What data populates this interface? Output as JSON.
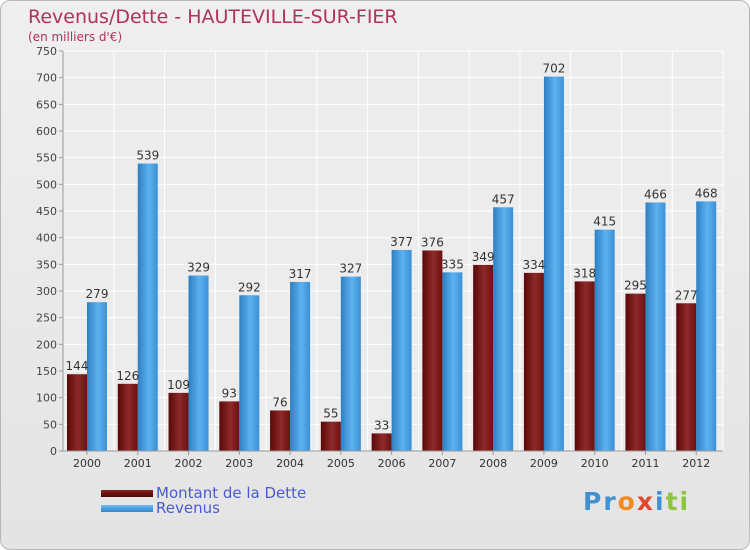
{
  "chart_data": {
    "type": "bar",
    "title": "Revenus/Dette - HAUTEVILLE-SUR-FIER",
    "subtitle": "(en milliers d'€)",
    "xlabel": "",
    "ylabel": "",
    "ylim": [
      0,
      750
    ],
    "yticks": [
      0,
      50,
      100,
      150,
      200,
      250,
      300,
      350,
      400,
      450,
      500,
      550,
      600,
      650,
      700,
      750
    ],
    "grid": true,
    "categories": [
      "2000",
      "2001",
      "2002",
      "2003",
      "2004",
      "2005",
      "2006",
      "2007",
      "2008",
      "2009",
      "2010",
      "2011",
      "2012"
    ],
    "series": [
      {
        "name": "Montant de la Dette",
        "color": "#7a1a1a",
        "values": [
          144,
          126,
          109,
          93,
          76,
          55,
          33,
          376,
          349,
          334,
          318,
          295,
          277
        ]
      },
      {
        "name": "Revenus",
        "color": "#3a96d8",
        "values": [
          279,
          539,
          329,
          292,
          317,
          327,
          377,
          335,
          457,
          702,
          415,
          466,
          468
        ]
      }
    ]
  },
  "legend": {
    "items": [
      {
        "label": "Montant de la Dette",
        "color": "#6b0d0d"
      },
      {
        "label": "Revenus",
        "color": "#4aa3e6"
      }
    ]
  },
  "brand": {
    "segments": [
      {
        "text": "Pr",
        "color": "#3f92d2"
      },
      {
        "text": "o",
        "color": "#f08a1e"
      },
      {
        "text": "x",
        "color": "#e04a2c"
      },
      {
        "text": "i",
        "color": "#3f92d2"
      },
      {
        "text": "ti",
        "color": "#8cc63f"
      }
    ]
  }
}
